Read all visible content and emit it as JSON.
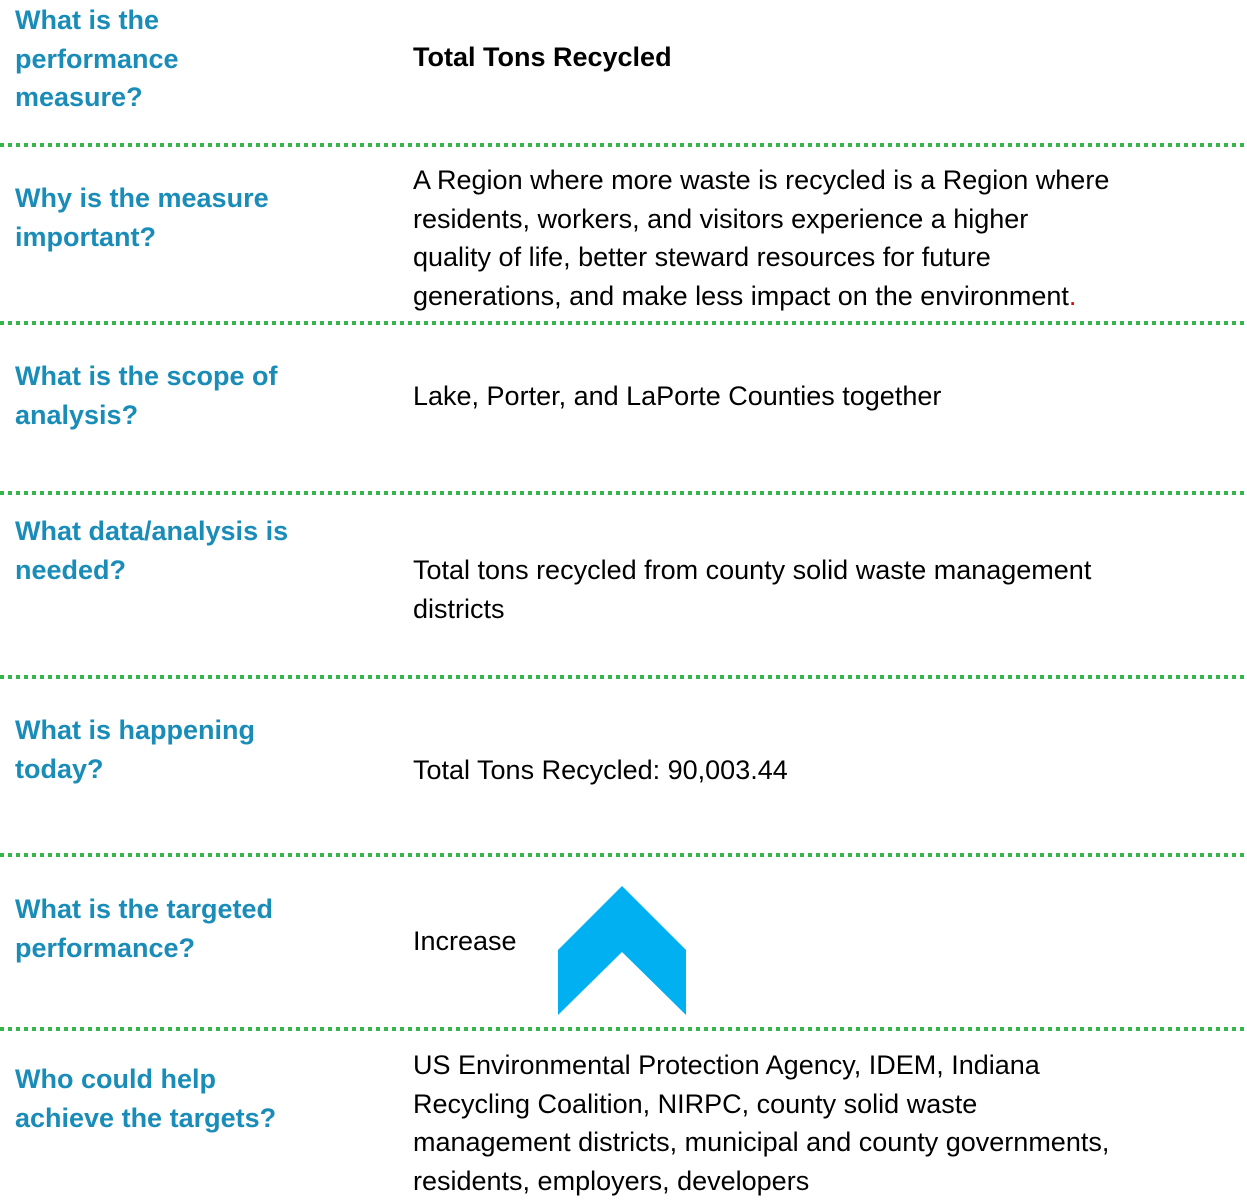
{
  "rows": [
    {
      "question": [
        "What is the",
        "performance",
        "measure?"
      ],
      "answer": [
        "Total Tons Recycled"
      ]
    },
    {
      "question": [
        "Why is the measure",
        "important?"
      ],
      "answer": [
        "A Region where more waste is recycled is a Region where",
        "residents, workers, and visitors experience a higher",
        "quality of life, better steward resources for future",
        "generations, and make less impact on the environment"
      ],
      "answer_end": "."
    },
    {
      "question": [
        "What is the scope of",
        "analysis?"
      ],
      "answer": [
        "Lake, Porter, and LaPorte Counties together"
      ]
    },
    {
      "question": [
        "What data/analysis is",
        "needed?"
      ],
      "answer": [
        "Total tons recycled from county solid waste management",
        "districts"
      ]
    },
    {
      "question": [
        "What is happening",
        "today?"
      ],
      "answer": [
        "Total Tons Recycled: 90,003.44"
      ]
    },
    {
      "question": [
        "What is the targeted",
        "performance?"
      ],
      "answer": [
        "Increase"
      ]
    },
    {
      "question": [
        "Who could help",
        "achieve the targets?"
      ],
      "answer": [
        "US Environmental Protection Agency, IDEM, Indiana",
        "Recycling Coalition, NIRPC, county solid waste",
        "management districts, municipal and county governments,",
        "residents, employers, developers"
      ]
    }
  ]
}
